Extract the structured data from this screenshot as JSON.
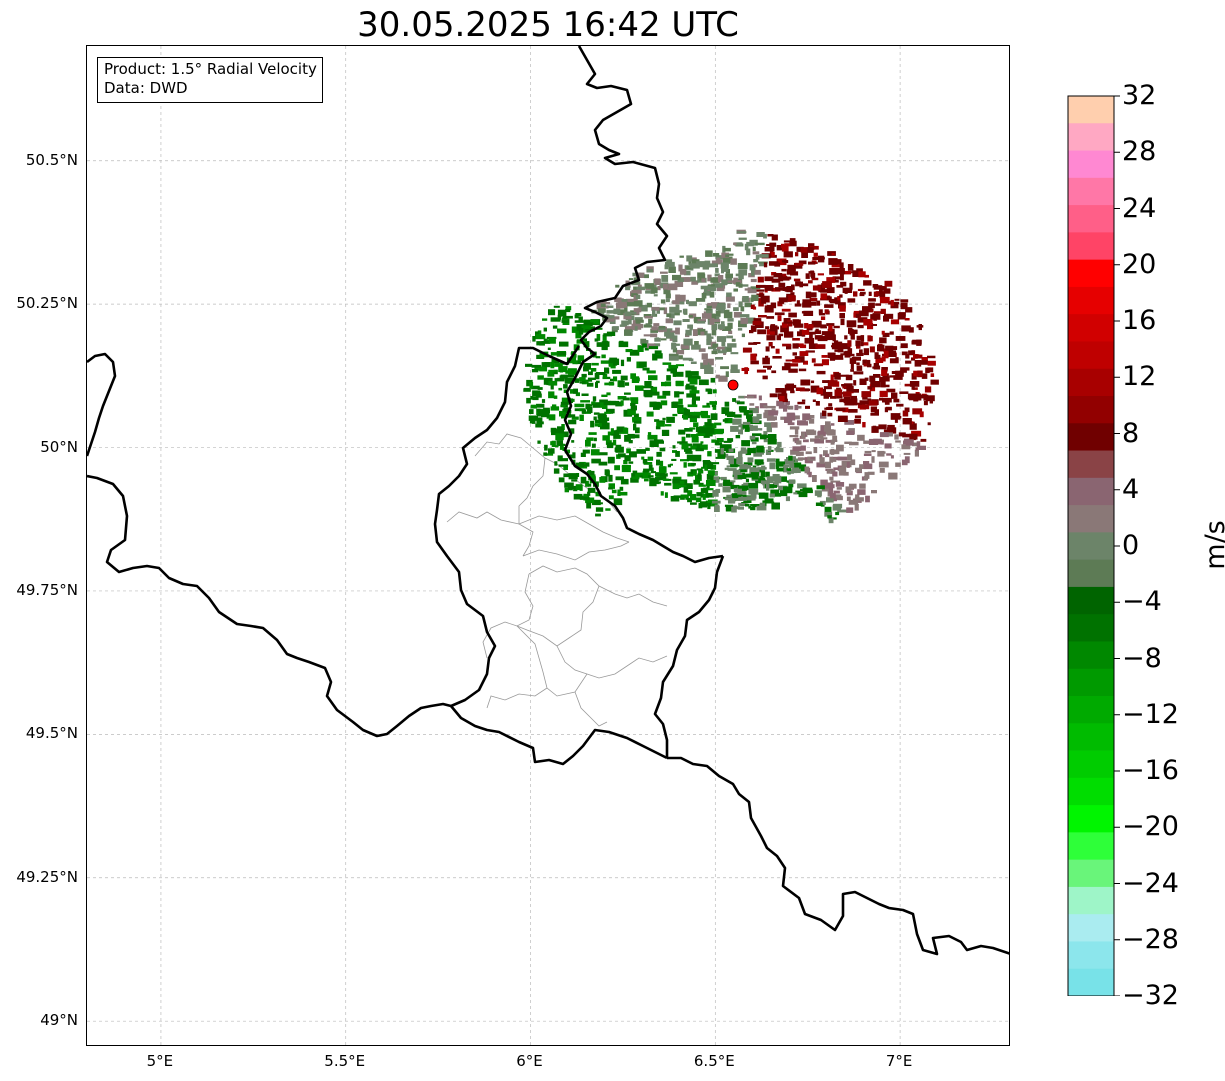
{
  "title": "30.05.2025 16:42 UTC",
  "info": {
    "product": "Product: 1.5° Radial Velocity",
    "source": "Data: DWD"
  },
  "map": {
    "lon_range": [
      4.8,
      7.3
    ],
    "lat_range": [
      48.955,
      50.7
    ],
    "lat_ticks": [
      {
        "value": 50.5,
        "label": "50.5°N"
      },
      {
        "value": 50.25,
        "label": "50.25°N"
      },
      {
        "value": 50.0,
        "label": "50°N"
      },
      {
        "value": 49.75,
        "label": "49.75°N"
      },
      {
        "value": 49.5,
        "label": "49.5°N"
      },
      {
        "value": 49.25,
        "label": "49.25°N"
      },
      {
        "value": 49.0,
        "label": "49°N"
      }
    ],
    "lon_ticks": [
      {
        "value": 5.0,
        "label": "5°E"
      },
      {
        "value": 5.5,
        "label": "5.5°E"
      },
      {
        "value": 6.0,
        "label": "6°E"
      },
      {
        "value": 6.5,
        "label": "6.5°E"
      },
      {
        "value": 7.0,
        "label": "7°E"
      }
    ],
    "radar_site": {
      "lon": 6.548,
      "lat": 50.109
    },
    "colors": {
      "border": "#000000",
      "admin": "#999999",
      "grid": "#bbbbbb",
      "radar_marker": "#ff0000"
    }
  },
  "colorbar": {
    "unit": "m/s",
    "min": -32,
    "max": 32,
    "step": 2,
    "tick_labels": [
      "32",
      "28",
      "24",
      "20",
      "16",
      "12",
      "8",
      "4",
      "0",
      "−4",
      "−8",
      "−12",
      "−16",
      "−20",
      "−24",
      "−28",
      "−32"
    ],
    "colors_top_to_bottom": [
      "#ffcfae",
      "#ffa8c3",
      "#ff88d2",
      "#ff77a7",
      "#ff5f88",
      "#ff4466",
      "#ff0000",
      "#e60000",
      "#d10000",
      "#bf0000",
      "#a80000",
      "#920000",
      "#700000",
      "#8a4346",
      "#8a6571",
      "#8a7877",
      "#6c8469",
      "#5d7b55",
      "#006400",
      "#007200",
      "#008800",
      "#009a00",
      "#00aa00",
      "#00bb00",
      "#00cc00",
      "#00dd00",
      "#00f500",
      "#2eff39",
      "#69f57a",
      "#9ef5c8",
      "#aaecf0",
      "#8ce6ec",
      "#78e2e8"
    ]
  }
}
